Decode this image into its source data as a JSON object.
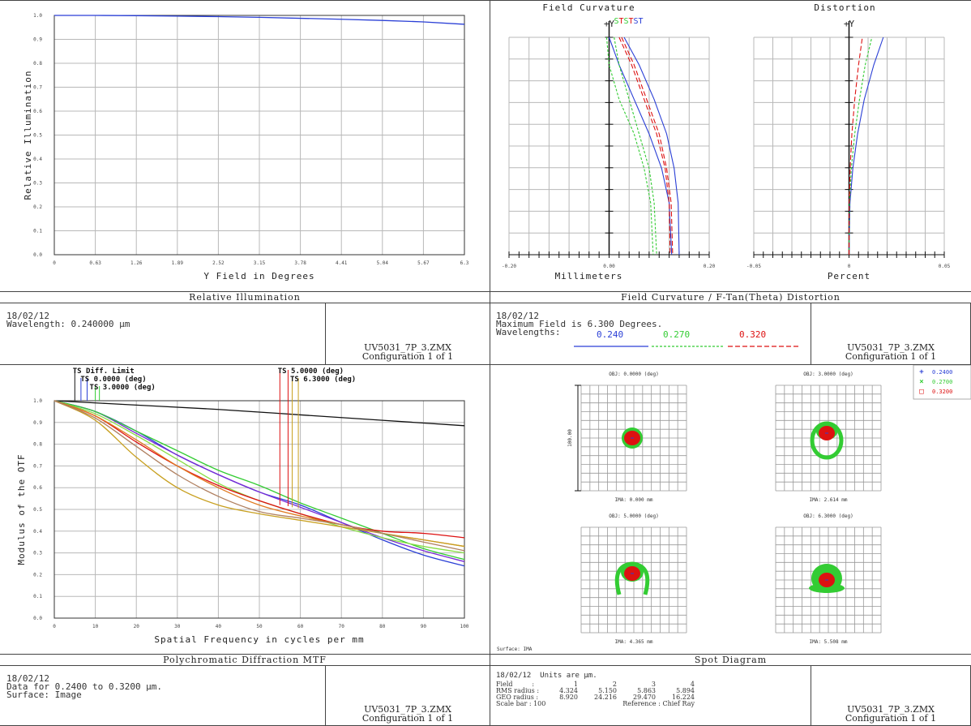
{
  "relative_illumination": {
    "caption": "Relative Illumination",
    "date": "18/02/12",
    "wavelength_line": "Wavelength: 0.240000 µm",
    "file_name": "UV5031_7P_3.ZMX",
    "configuration": "Configuration 1 of 1"
  },
  "field_curvature_distortion": {
    "caption": "Field Curvature / F-Tan(Theta) Distortion",
    "fc_title": "Field Curvature",
    "dist_title": "Distortion",
    "fc_legend": [
      "S",
      "T",
      "S",
      "T",
      "S",
      "T"
    ],
    "date": "18/02/12",
    "max_field_line": "Maximum Field is 6.300 Degrees.",
    "wavelengths_label": "Wavelengths:",
    "wavelengths": [
      "0.240",
      "0.270",
      "0.320"
    ],
    "file_name": "UV5031_7P_3.ZMX",
    "configuration": "Configuration 1 of 1"
  },
  "mtf": {
    "caption": "Polychromatic Diffraction MTF",
    "date": "18/02/12",
    "data_line": "Data for 0.2400 to 0.3200 µm.",
    "surface_line": "Surface: Image",
    "file_name": "UV5031_7P_3.ZMX",
    "configuration": "Configuration 1 of 1",
    "legend_labels": [
      "TS Diff. Limit",
      "TS 0.0000 (deg)",
      "TS 3.0000 (deg)",
      "TS 5.0000 (deg)",
      "TS 6.3000 (deg)"
    ]
  },
  "spot": {
    "caption": "Spot Diagram",
    "header_line": "18/02/12  Units are µm.",
    "rows": [
      {
        "label": "Field",
        "values": [
          "1",
          "2",
          "3",
          "4"
        ]
      },
      {
        "label": "RMS radius :",
        "values": [
          "4.324",
          "5.150",
          "5.863",
          "5.894"
        ]
      },
      {
        "label": "GEO radius :",
        "values": [
          "8.920",
          "24.216",
          "29.470",
          "16.224"
        ]
      }
    ],
    "field_sep": ":",
    "scale_bar": "Scale bar  : 100",
    "reference": "Reference  : Chief Ray",
    "surface": "Surface: IMA",
    "scale_label": "100.00",
    "fields": [
      {
        "obj": "OBJ: 0.0000 (deg)",
        "ima": "IMA: 0.000 mm"
      },
      {
        "obj": "OBJ: 3.0000 (deg)",
        "ima": "IMA: 2.614 mm"
      },
      {
        "obj": "OBJ: 5.0000 (deg)",
        "ima": "IMA: 4.365 mm"
      },
      {
        "obj": "OBJ: 6.3000 (deg)",
        "ima": "IMA: 5.508 mm"
      }
    ],
    "legend": [
      {
        "symbol": "+",
        "label": "0.2400",
        "color": "#2a3fd6"
      },
      {
        "symbol": "×",
        "label": "0.2700",
        "color": "#33cc33"
      },
      {
        "symbol": "□",
        "label": "0.3200",
        "color": "#dd1111"
      }
    ],
    "file_name": "UV5031_7P_3.ZMX",
    "configuration": "Configuration 1 of 1"
  },
  "colors": {
    "w240": "#2a3fd6",
    "w270": "#33cc33",
    "w320": "#dd1111",
    "grid": "#b8b8b8"
  },
  "chart_data": [
    {
      "type": "line",
      "title": "",
      "xlabel": "Y Field in Degrees",
      "ylabel": "Relative Illumination",
      "xlim": [
        0,
        6.3
      ],
      "ylim": [
        0,
        1.0
      ],
      "xticks": [
        "0",
        "0.63",
        "1.26",
        "1.89",
        "2.52",
        "3.15",
        "3.78",
        "4.41",
        "5.04",
        "5.67",
        "6.3"
      ],
      "yticks": [
        "0.0",
        "0.1",
        "0.2",
        "0.3",
        "0.4",
        "0.5",
        "0.6",
        "0.7",
        "0.8",
        "0.9",
        "1.0"
      ],
      "grid": true,
      "series": [
        {
          "x": [
            0,
            0.63,
            1.26,
            1.89,
            2.52,
            3.15,
            3.78,
            4.41,
            5.04,
            5.67,
            6.3
          ],
          "values": [
            1.0,
            1.0,
            0.999,
            0.997,
            0.995,
            0.992,
            0.988,
            0.984,
            0.979,
            0.973,
            0.963
          ]
        }
      ]
    },
    {
      "type": "line",
      "title": "Field Curvature",
      "xlabel": "Millimeters",
      "ylabel": "+Y",
      "xlim": [
        -0.2,
        0.2
      ],
      "xticks": [
        "-0.20",
        "0.00",
        "0.20"
      ],
      "ylim": [
        0,
        6.3
      ],
      "grid": true,
      "series": [
        {
          "name": "S",
          "color_key": "w240",
          "x": [
            0.0,
            0.02,
            0.05,
            0.08,
            0.105,
            0.12,
            0.125
          ],
          "values": [
            6.3,
            5.5,
            4.5,
            3.5,
            2.5,
            1.5,
            0
          ]
        },
        {
          "name": "T",
          "color_key": "w240",
          "x": [
            0.03,
            0.06,
            0.09,
            0.115,
            0.13,
            0.138,
            0.14
          ],
          "values": [
            6.3,
            5.5,
            4.5,
            3.5,
            2.5,
            1.5,
            0
          ]
        },
        {
          "name": "S",
          "color_key": "w270",
          "x": [
            -0.005,
            0.0,
            0.02,
            0.05,
            0.07,
            0.083,
            0.088
          ],
          "values": [
            6.3,
            5.5,
            4.5,
            3.5,
            2.5,
            1.5,
            0
          ]
        },
        {
          "name": "T",
          "color_key": "w270",
          "x": [
            0.01,
            0.02,
            0.04,
            0.06,
            0.08,
            0.09,
            0.095
          ],
          "values": [
            6.3,
            5.5,
            4.5,
            3.5,
            2.5,
            1.5,
            0
          ]
        },
        {
          "name": "S",
          "color_key": "w320",
          "x": [
            0.02,
            0.045,
            0.07,
            0.095,
            0.112,
            0.12,
            0.122
          ],
          "values": [
            6.3,
            5.5,
            4.5,
            3.5,
            2.5,
            1.5,
            0
          ]
        },
        {
          "name": "T",
          "color_key": "w320",
          "x": [
            0.025,
            0.05,
            0.075,
            0.1,
            0.115,
            0.124,
            0.127
          ],
          "values": [
            6.3,
            5.5,
            4.5,
            3.5,
            2.5,
            1.5,
            0
          ]
        }
      ]
    },
    {
      "type": "line",
      "title": "Distortion",
      "xlabel": "Percent",
      "ylabel": "+Y",
      "xlim": [
        -0.05,
        0.05
      ],
      "xticks": [
        "-0.05",
        "0",
        "0.05"
      ],
      "ylim": [
        0,
        6.3
      ],
      "grid": true,
      "series": [
        {
          "name": "0.240",
          "color_key": "w240",
          "x": [
            0,
            0.0005,
            0.002,
            0.0045,
            0.008,
            0.013,
            0.018
          ],
          "values": [
            0,
            1.5,
            2.5,
            3.5,
            4.5,
            5.5,
            6.3
          ]
        },
        {
          "name": "0.270",
          "color_key": "w270",
          "x": [
            0,
            0.0003,
            0.0012,
            0.003,
            0.0055,
            0.0085,
            0.012
          ],
          "values": [
            0,
            1.5,
            2.5,
            3.5,
            4.5,
            5.5,
            6.3
          ]
        },
        {
          "name": "0.320",
          "color_key": "w320",
          "x": [
            0,
            0.0001,
            0.0006,
            0.0015,
            0.003,
            0.005,
            0.007
          ],
          "values": [
            0,
            1.5,
            2.5,
            3.5,
            4.5,
            5.5,
            6.3
          ]
        }
      ]
    },
    {
      "type": "line",
      "title": "",
      "xlabel": "Spatial Frequency in cycles per mm",
      "ylabel": "Modulus of the OTF",
      "xlim": [
        0,
        100
      ],
      "ylim": [
        0,
        1.0
      ],
      "xticks": [
        "0",
        "10",
        "20",
        "30",
        "40",
        "50",
        "60",
        "70",
        "80",
        "90",
        "100"
      ],
      "yticks": [
        "0.0",
        "0.1",
        "0.2",
        "0.3",
        "0.4",
        "0.5",
        "0.6",
        "0.7",
        "0.8",
        "0.9",
        "1.0"
      ],
      "grid": true,
      "series": [
        {
          "name": "Diff. Limit",
          "color": "#111111",
          "x": [
            0,
            20,
            40,
            60,
            80,
            100
          ],
          "values": [
            1.0,
            0.98,
            0.96,
            0.935,
            0.91,
            0.885
          ]
        },
        {
          "name": "0.0000 T",
          "color": "#2a3fd6",
          "x": [
            0,
            10,
            20,
            30,
            40,
            50,
            60,
            70,
            80,
            90,
            100
          ],
          "values": [
            1.0,
            0.95,
            0.86,
            0.75,
            0.66,
            0.58,
            0.52,
            0.44,
            0.36,
            0.29,
            0.24
          ]
        },
        {
          "name": "0.0000 S",
          "color": "#7a2ad6",
          "x": [
            0,
            10,
            20,
            30,
            40,
            50,
            60,
            70,
            80,
            90,
            100
          ],
          "values": [
            1.0,
            0.95,
            0.85,
            0.75,
            0.66,
            0.58,
            0.51,
            0.44,
            0.37,
            0.31,
            0.26
          ]
        },
        {
          "name": "3.0000 T",
          "color": "#33cc33",
          "x": [
            0,
            10,
            20,
            30,
            40,
            50,
            60,
            70,
            80,
            90,
            100
          ],
          "values": [
            1.0,
            0.95,
            0.86,
            0.77,
            0.68,
            0.61,
            0.53,
            0.46,
            0.39,
            0.32,
            0.27
          ]
        },
        {
          "name": "3.0000 S",
          "color": "#88dd44",
          "x": [
            0,
            10,
            20,
            30,
            40,
            50,
            60,
            70,
            80,
            90,
            100
          ],
          "values": [
            1.0,
            0.94,
            0.84,
            0.73,
            0.62,
            0.54,
            0.48,
            0.42,
            0.37,
            0.33,
            0.3
          ]
        },
        {
          "name": "5.0000 T",
          "color": "#dd1111",
          "x": [
            0,
            10,
            20,
            30,
            40,
            50,
            60,
            70,
            80,
            90,
            100
          ],
          "values": [
            1.0,
            0.93,
            0.81,
            0.7,
            0.61,
            0.54,
            0.48,
            0.43,
            0.4,
            0.39,
            0.37
          ]
        },
        {
          "name": "5.0000 S",
          "color": "#e07a20",
          "x": [
            0,
            10,
            20,
            30,
            40,
            50,
            60,
            70,
            80,
            90,
            100
          ],
          "values": [
            1.0,
            0.93,
            0.82,
            0.7,
            0.6,
            0.52,
            0.47,
            0.43,
            0.39,
            0.36,
            0.33
          ]
        },
        {
          "name": "6.3000 T",
          "color": "#c8a020",
          "x": [
            0,
            10,
            20,
            30,
            40,
            50,
            60,
            70,
            80,
            90,
            100
          ],
          "values": [
            1.0,
            0.91,
            0.74,
            0.6,
            0.52,
            0.48,
            0.45,
            0.42,
            0.39,
            0.36,
            0.33
          ]
        },
        {
          "name": "6.3000 S",
          "color": "#b08060",
          "x": [
            0,
            10,
            20,
            30,
            40,
            50,
            60,
            70,
            80,
            90,
            100
          ],
          "values": [
            1.0,
            0.92,
            0.79,
            0.66,
            0.56,
            0.49,
            0.46,
            0.43,
            0.39,
            0.35,
            0.31
          ]
        }
      ],
      "markers": [
        {
          "x": 5.0,
          "color": "#111111"
        },
        {
          "x": 6.5,
          "color": "#2a3fd6"
        },
        {
          "x": 8.0,
          "color": "#2a3fd6"
        },
        {
          "x": 10.0,
          "color": "#33cc33"
        },
        {
          "x": 11.0,
          "color": "#33cc33"
        },
        {
          "x": 55.0,
          "color": "#dd1111"
        },
        {
          "x": 57.0,
          "color": "#dd1111"
        },
        {
          "x": 58.0,
          "color": "#c8a020"
        },
        {
          "x": 59.5,
          "color": "#c8a020"
        }
      ]
    }
  ]
}
